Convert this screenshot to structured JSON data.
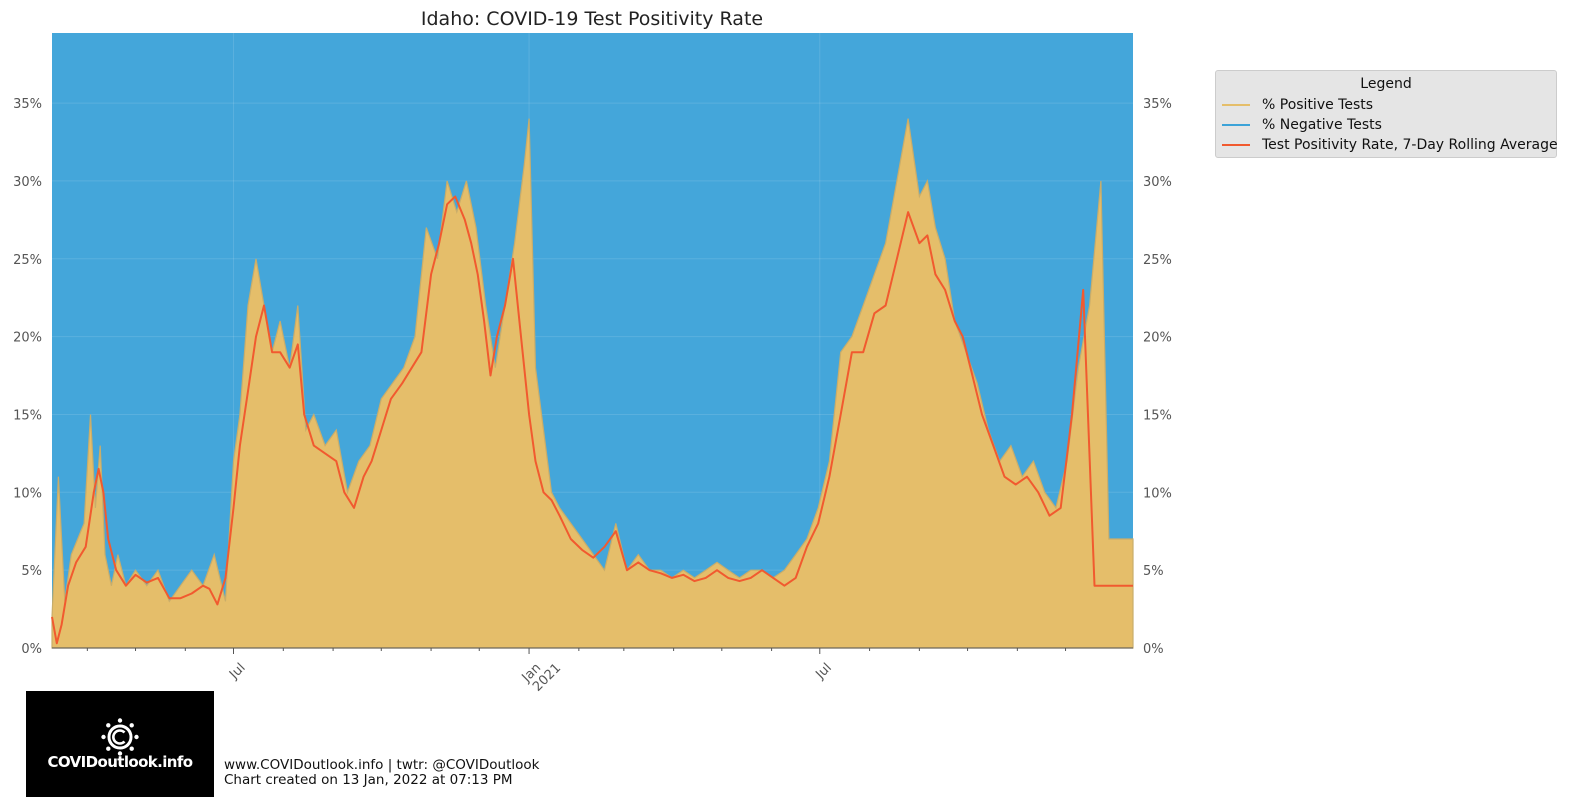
{
  "chart_data": {
    "type": "area",
    "title": "Idaho: COVID-19 Test Positivity Rate",
    "x_start": "2020-03-10",
    "x_end": "2022-01-12",
    "ylim": [
      0,
      0.395
    ],
    "y_ticks": [
      0,
      0.05,
      0.1,
      0.15,
      0.2,
      0.25,
      0.3,
      0.35
    ],
    "y_tick_labels": [
      "0%",
      "5%",
      "10%",
      "15%",
      "20%",
      "25%",
      "30%",
      "35%"
    ],
    "x_major_ticks": [
      {
        "date": "2020-07-01",
        "label": "Jul"
      },
      {
        "date": "2021-01-01",
        "label": "Jan\n2021"
      },
      {
        "date": "2021-07-01",
        "label": "Jul"
      }
    ],
    "x_minor_ticks": [
      "2020-04-01",
      "2020-05-01",
      "2020-06-01",
      "2020-08-01",
      "2020-09-01",
      "2020-10-01",
      "2020-11-01",
      "2020-12-01",
      "2021-02-01",
      "2021-03-01",
      "2021-04-01",
      "2021-05-01",
      "2021-06-01",
      "2021-08-01",
      "2021-09-01",
      "2021-10-01",
      "2021-11-01",
      "2021-12-01"
    ],
    "grid": true,
    "legend_position": "outside-top-right",
    "colors": {
      "positive": "#e5be6a",
      "negative": "#3ca3d8",
      "rolling": "#f15a2f",
      "positive_line": "#c9ad6a"
    },
    "series": [
      {
        "name": "% Positive Tests",
        "color": "#e5be6a"
      },
      {
        "name": "% Negative Tests",
        "color": "#3ca3d8"
      },
      {
        "name": "Test Positivity Rate, 7-Day Rolling Average",
        "color": "#f15a2f"
      }
    ],
    "rolling_average": {
      "x": [
        "2020-03-10",
        "2020-03-13",
        "2020-03-16",
        "2020-03-20",
        "2020-03-25",
        "2020-03-31",
        "2020-04-05",
        "2020-04-08",
        "2020-04-11",
        "2020-04-14",
        "2020-04-19",
        "2020-04-25",
        "2020-05-01",
        "2020-05-08",
        "2020-05-15",
        "2020-05-22",
        "2020-05-29",
        "2020-06-05",
        "2020-06-12",
        "2020-06-16",
        "2020-06-21",
        "2020-06-26",
        "2020-07-01",
        "2020-07-05",
        "2020-07-10",
        "2020-07-15",
        "2020-07-20",
        "2020-07-25",
        "2020-07-30",
        "2020-08-05",
        "2020-08-10",
        "2020-08-14",
        "2020-08-20",
        "2020-08-27",
        "2020-09-03",
        "2020-09-08",
        "2020-09-14",
        "2020-09-20",
        "2020-09-25",
        "2020-10-01",
        "2020-10-07",
        "2020-10-14",
        "2020-10-20",
        "2020-10-26",
        "2020-11-01",
        "2020-11-06",
        "2020-11-11",
        "2020-11-16",
        "2020-11-22",
        "2020-11-26",
        "2020-11-30",
        "2020-12-04",
        "2020-12-08",
        "2020-12-12",
        "2020-12-17",
        "2020-12-22",
        "2020-12-27",
        "2021-01-01",
        "2021-01-05",
        "2021-01-10",
        "2021-01-15",
        "2021-01-20",
        "2021-01-27",
        "2021-02-03",
        "2021-02-10",
        "2021-02-17",
        "2021-02-24",
        "2021-03-03",
        "2021-03-10",
        "2021-03-17",
        "2021-03-24",
        "2021-03-31",
        "2021-04-07",
        "2021-04-14",
        "2021-04-21",
        "2021-04-28",
        "2021-05-05",
        "2021-05-12",
        "2021-05-19",
        "2021-05-26",
        "2021-06-02",
        "2021-06-09",
        "2021-06-16",
        "2021-06-23",
        "2021-06-30",
        "2021-07-07",
        "2021-07-14",
        "2021-07-21",
        "2021-07-28",
        "2021-08-04",
        "2021-08-11",
        "2021-08-18",
        "2021-08-25",
        "2021-09-01",
        "2021-09-06",
        "2021-09-11",
        "2021-09-17",
        "2021-09-23",
        "2021-09-28",
        "2021-10-04",
        "2021-10-10",
        "2021-10-17",
        "2021-10-24",
        "2021-10-31",
        "2021-11-07",
        "2021-11-14",
        "2021-11-21",
        "2021-11-28",
        "2021-12-05",
        "2021-12-12",
        "2021-12-19",
        "2021-12-24",
        "2021-12-29",
        "2022-01-03",
        "2022-01-08",
        "2022-01-12"
      ],
      "y": [
        0.02,
        0.003,
        0.015,
        0.04,
        0.055,
        0.065,
        0.1,
        0.115,
        0.1,
        0.07,
        0.05,
        0.04,
        0.047,
        0.042,
        0.045,
        0.032,
        0.032,
        0.035,
        0.04,
        0.038,
        0.028,
        0.045,
        0.09,
        0.13,
        0.165,
        0.2,
        0.22,
        0.19,
        0.19,
        0.18,
        0.195,
        0.15,
        0.13,
        0.125,
        0.12,
        0.1,
        0.09,
        0.11,
        0.12,
        0.14,
        0.16,
        0.17,
        0.18,
        0.19,
        0.24,
        0.26,
        0.285,
        0.29,
        0.275,
        0.26,
        0.24,
        0.21,
        0.175,
        0.2,
        0.22,
        0.25,
        0.2,
        0.15,
        0.12,
        0.1,
        0.095,
        0.085,
        0.07,
        0.063,
        0.058,
        0.065,
        0.075,
        0.05,
        0.055,
        0.05,
        0.048,
        0.045,
        0.047,
        0.043,
        0.045,
        0.05,
        0.045,
        0.043,
        0.045,
        0.05,
        0.045,
        0.04,
        0.045,
        0.065,
        0.08,
        0.11,
        0.15,
        0.19,
        0.19,
        0.215,
        0.22,
        0.25,
        0.28,
        0.26,
        0.265,
        0.24,
        0.23,
        0.21,
        0.2,
        0.175,
        0.15,
        0.13,
        0.11,
        0.105,
        0.11,
        0.1,
        0.085,
        0.09,
        0.15,
        0.23,
        0.04,
        0.04,
        0.04,
        0.04,
        0.04,
        0.04
      ]
    },
    "daily_positive": {
      "x": [
        "2020-03-10",
        "2020-03-14",
        "2020-03-18",
        "2020-03-22",
        "2020-03-26",
        "2020-03-30",
        "2020-04-03",
        "2020-04-06",
        "2020-04-09",
        "2020-04-12",
        "2020-04-16",
        "2020-04-20",
        "2020-04-25",
        "2020-05-01",
        "2020-05-08",
        "2020-05-15",
        "2020-05-22",
        "2020-05-29",
        "2020-06-05",
        "2020-06-12",
        "2020-06-19",
        "2020-06-26",
        "2020-07-01",
        "2020-07-05",
        "2020-07-10",
        "2020-07-15",
        "2020-07-20",
        "2020-07-25",
        "2020-07-30",
        "2020-08-05",
        "2020-08-10",
        "2020-08-15",
        "2020-08-20",
        "2020-08-27",
        "2020-09-03",
        "2020-09-10",
        "2020-09-17",
        "2020-09-24",
        "2020-10-01",
        "2020-10-08",
        "2020-10-15",
        "2020-10-22",
        "2020-10-29",
        "2020-11-05",
        "2020-11-11",
        "2020-11-17",
        "2020-11-23",
        "2020-11-29",
        "2020-12-05",
        "2020-12-11",
        "2020-12-17",
        "2020-12-23",
        "2020-12-29",
        "2021-01-01",
        "2021-01-05",
        "2021-01-10",
        "2021-01-15",
        "2021-01-20",
        "2021-01-27",
        "2021-02-03",
        "2021-02-10",
        "2021-02-17",
        "2021-02-24",
        "2021-03-03",
        "2021-03-10",
        "2021-03-17",
        "2021-03-24",
        "2021-03-31",
        "2021-04-07",
        "2021-04-14",
        "2021-04-21",
        "2021-04-28",
        "2021-05-05",
        "2021-05-12",
        "2021-05-19",
        "2021-05-26",
        "2021-06-02",
        "2021-06-09",
        "2021-06-16",
        "2021-06-23",
        "2021-06-30",
        "2021-07-07",
        "2021-07-14",
        "2021-07-21",
        "2021-07-28",
        "2021-08-04",
        "2021-08-11",
        "2021-08-18",
        "2021-08-25",
        "2021-09-01",
        "2021-09-06",
        "2021-09-11",
        "2021-09-17",
        "2021-09-23",
        "2021-09-30",
        "2021-10-07",
        "2021-10-14",
        "2021-10-21",
        "2021-10-28",
        "2021-11-04",
        "2021-11-11",
        "2021-11-18",
        "2021-11-25",
        "2021-12-02",
        "2021-12-09",
        "2021-12-16",
        "2021-12-23",
        "2021-12-28",
        "2022-01-02",
        "2022-01-07",
        "2022-01-12"
      ],
      "y": [
        0.02,
        0.11,
        0.03,
        0.06,
        0.07,
        0.08,
        0.15,
        0.09,
        0.13,
        0.06,
        0.04,
        0.06,
        0.04,
        0.05,
        0.04,
        0.05,
        0.03,
        0.04,
        0.05,
        0.04,
        0.06,
        0.03,
        0.12,
        0.15,
        0.22,
        0.25,
        0.22,
        0.19,
        0.21,
        0.18,
        0.22,
        0.14,
        0.15,
        0.13,
        0.14,
        0.1,
        0.12,
        0.13,
        0.16,
        0.17,
        0.18,
        0.2,
        0.27,
        0.25,
        0.3,
        0.28,
        0.3,
        0.27,
        0.22,
        0.18,
        0.22,
        0.26,
        0.31,
        0.34,
        0.18,
        0.14,
        0.1,
        0.09,
        0.08,
        0.07,
        0.06,
        0.05,
        0.08,
        0.05,
        0.06,
        0.05,
        0.05,
        0.045,
        0.05,
        0.045,
        0.05,
        0.055,
        0.05,
        0.045,
        0.05,
        0.05,
        0.045,
        0.05,
        0.06,
        0.07,
        0.09,
        0.12,
        0.19,
        0.2,
        0.22,
        0.24,
        0.26,
        0.3,
        0.34,
        0.29,
        0.3,
        0.27,
        0.25,
        0.21,
        0.19,
        0.17,
        0.14,
        0.12,
        0.13,
        0.11,
        0.12,
        0.1,
        0.09,
        0.12,
        0.18,
        0.22,
        0.3,
        0.07,
        0.07,
        0.07,
        0.07
      ]
    }
  },
  "legend": {
    "title": "Legend",
    "items": [
      {
        "label": "% Positive Tests",
        "color": "#e5be6a"
      },
      {
        "label": "% Negative Tests",
        "color": "#3ca3d8"
      },
      {
        "label": "Test Positivity Rate, 7-Day Rolling Average",
        "color": "#f15a2f"
      }
    ]
  },
  "logo": {
    "text": "COVIDoutlook.info",
    "icon": "virus-c-icon"
  },
  "footer": {
    "line1": "www.COVIDoutlook.info | twtr: @COVIDoutlook",
    "line2": "Chart created on 13 Jan, 2022 at 07:13 PM"
  }
}
